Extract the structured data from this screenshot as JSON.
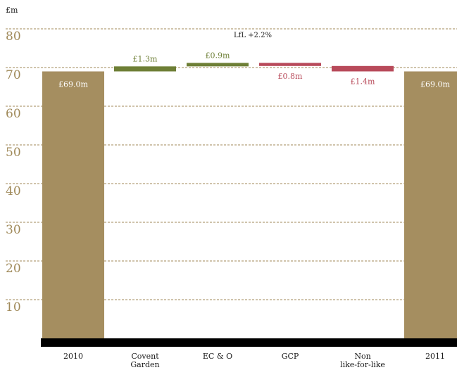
{
  "chart_data": {
    "type": "bar",
    "subtype": "waterfall",
    "ylabel": "£m",
    "ylim": [
      0,
      80
    ],
    "yticks": [
      10,
      20,
      30,
      40,
      50,
      60,
      70,
      80
    ],
    "grid": true,
    "annotation": "LfL +2.2%",
    "categories": [
      "2010",
      "Covent Garden",
      "EC & O",
      "GCP",
      "Non like-for-like",
      "2011"
    ],
    "bars": [
      {
        "category": "2010",
        "kind": "total",
        "value": 69.0,
        "label": "£69.0m"
      },
      {
        "category": "Covent Garden",
        "kind": "increase",
        "value": 1.3,
        "label": "£1.3m"
      },
      {
        "category": "EC & O",
        "kind": "increase",
        "value": 0.9,
        "label": "£0.9m"
      },
      {
        "category": "GCP",
        "kind": "decrease",
        "value": 0.8,
        "label": "£0.8m"
      },
      {
        "category": "Non like-for-like",
        "kind": "decrease",
        "value": 1.4,
        "label": "£1.4m"
      },
      {
        "category": "2011",
        "kind": "total",
        "value": 69.0,
        "label": "£69.0m"
      }
    ],
    "colors": {
      "total": "#a58e60",
      "increase": "#6e7f36",
      "decrease": "#b84a5a",
      "axis": "#000000",
      "grid": "#a08a5a",
      "tick_text": "#a08a5a",
      "total_label": "#ffffff"
    }
  }
}
